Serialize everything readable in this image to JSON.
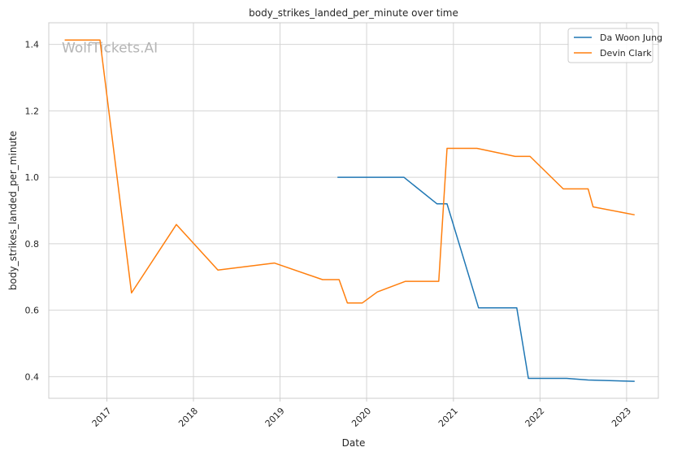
{
  "chart_data": {
    "type": "line",
    "title": "body_strikes_landed_per_minute over time",
    "xlabel": "Date",
    "ylabel": "body_strikes_landed_per_minute",
    "watermark": "WolfTickets.AI",
    "xlim": [
      "2016-05-01",
      "2023-05-15"
    ],
    "ylim": [
      0.335,
      1.465
    ],
    "x_ticks": [
      "2017-01-01",
      "2018-01-01",
      "2019-01-01",
      "2020-01-01",
      "2021-01-01",
      "2022-01-01",
      "2023-01-01"
    ],
    "x_tick_labels": [
      "2017",
      "2018",
      "2019",
      "2020",
      "2021",
      "2022",
      "2023"
    ],
    "y_ticks": [
      0.4,
      0.6,
      0.8,
      1.0,
      1.2,
      1.4
    ],
    "y_tick_labels": [
      "0.4",
      "0.6",
      "0.8",
      "1.0",
      "1.2",
      "1.4"
    ],
    "grid": true,
    "legend_position": "top-right",
    "series": [
      {
        "name": "Da Woon Jung",
        "color": "#1f77b4",
        "points": [
          [
            "2019-08-31",
            1.0
          ],
          [
            "2020-06-06",
            1.0
          ],
          [
            "2020-10-24",
            0.92
          ],
          [
            "2020-12-05",
            0.92
          ],
          [
            "2021-04-17",
            0.607
          ],
          [
            "2021-09-25",
            0.607
          ],
          [
            "2021-11-13",
            0.395
          ],
          [
            "2022-04-23",
            0.395
          ],
          [
            "2022-07-23",
            0.39
          ],
          [
            "2023-02-04",
            0.386
          ]
        ]
      },
      {
        "name": "Devin Clark",
        "color": "#ff7f0e",
        "points": [
          [
            "2016-07-07",
            1.413
          ],
          [
            "2016-12-03",
            1.413
          ],
          [
            "2017-04-15",
            0.652
          ],
          [
            "2017-10-21",
            0.858
          ],
          [
            "2018-04-14",
            0.721
          ],
          [
            "2018-12-08",
            0.742
          ],
          [
            "2019-06-29",
            0.692
          ],
          [
            "2019-09-07",
            0.692
          ],
          [
            "2019-10-12",
            0.622
          ],
          [
            "2019-12-14",
            0.622
          ],
          [
            "2020-02-15",
            0.655
          ],
          [
            "2020-06-13",
            0.687
          ],
          [
            "2020-10-31",
            0.687
          ],
          [
            "2020-12-05",
            1.087
          ],
          [
            "2021-04-10",
            1.087
          ],
          [
            "2021-09-18",
            1.063
          ],
          [
            "2021-11-20",
            1.063
          ],
          [
            "2022-04-09",
            0.965
          ],
          [
            "2022-07-23",
            0.965
          ],
          [
            "2022-08-13",
            0.911
          ],
          [
            "2023-02-04",
            0.887
          ]
        ]
      }
    ]
  }
}
